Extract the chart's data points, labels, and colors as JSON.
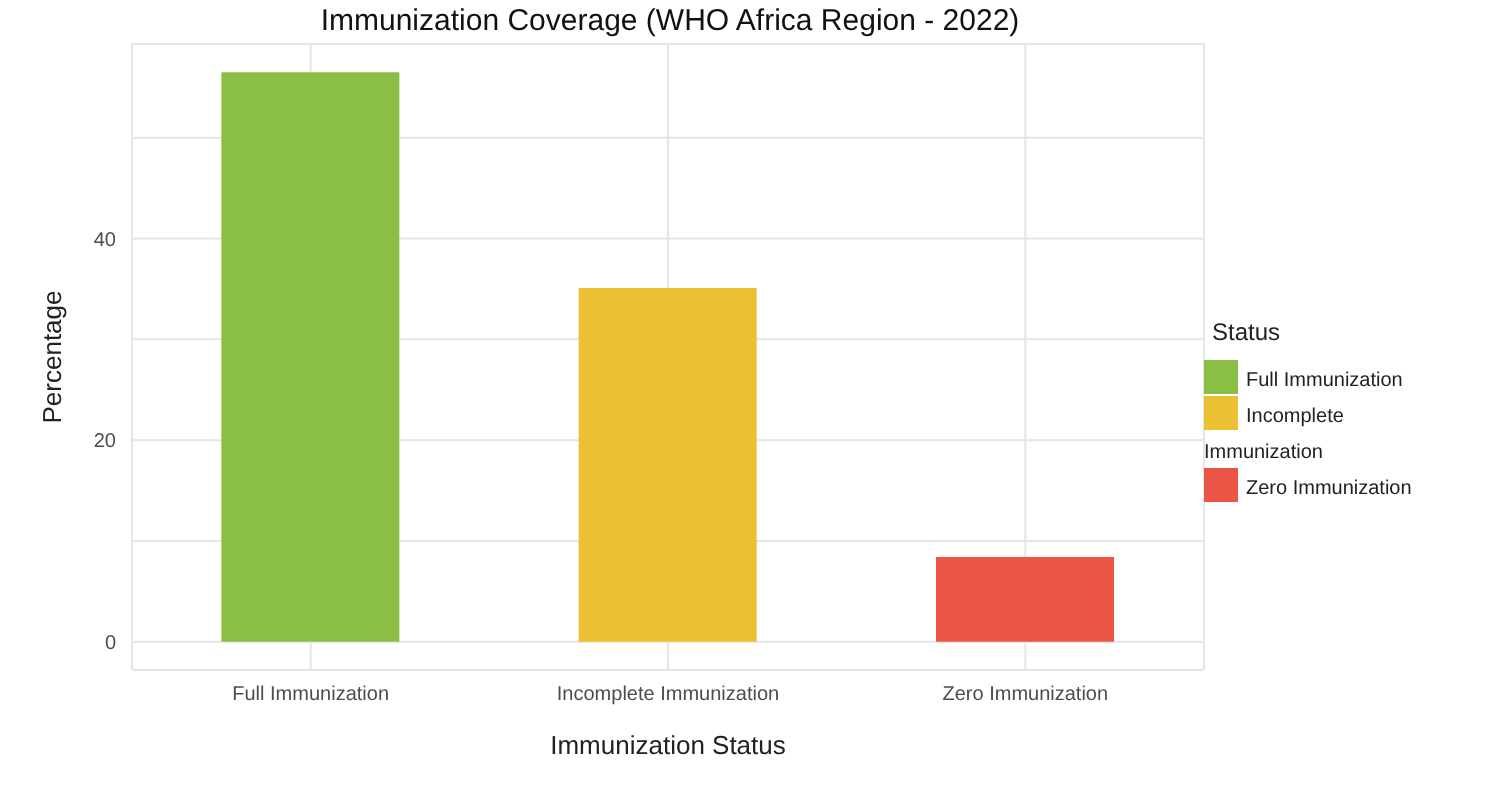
{
  "chart_data": {
    "type": "bar",
    "title": "Immunization Coverage (WHO Africa Region - 2022)",
    "xlabel": "Immunization Status",
    "ylabel": "Percentage",
    "legend_title": "Status",
    "categories": [
      "Full Immunization",
      "Incomplete Immunization",
      "Zero Immunization"
    ],
    "series": [
      {
        "name": "Full Immunization",
        "color": "#8bbe45",
        "values": [
          56.5,
          null,
          null
        ]
      },
      {
        "name": "Incomplete Immunization",
        "color": "#ecc033",
        "values": [
          null,
          35.1,
          null
        ]
      },
      {
        "name": "Zero Immunization",
        "color": "#ea5546",
        "values": [
          null,
          null,
          8.4
        ]
      }
    ],
    "stacked": true,
    "ylim": [
      -2.8,
      59.3
    ],
    "yticks": [
      0,
      {
        "value": 10,
        "label": null
      },
      20,
      {
        "value": 30,
        "label": null
      },
      40,
      {
        "value": 50,
        "label": null
      }
    ],
    "grid": true,
    "legend": "right"
  }
}
